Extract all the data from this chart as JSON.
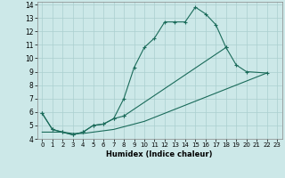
{
  "xlabel": "Humidex (Indice chaleur)",
  "background_color": "#cce8e8",
  "grid_color": "#aacfcf",
  "line_color": "#1a6b5a",
  "xlim": [
    -0.5,
    23.5
  ],
  "ylim": [
    4,
    14.2
  ],
  "xticks": [
    0,
    1,
    2,
    3,
    4,
    5,
    6,
    7,
    8,
    9,
    10,
    11,
    12,
    13,
    14,
    15,
    16,
    17,
    18,
    19,
    20,
    21,
    22,
    23
  ],
  "yticks": [
    4,
    5,
    6,
    7,
    8,
    9,
    10,
    11,
    12,
    13,
    14
  ],
  "series1_x": [
    0,
    1,
    2,
    3,
    4,
    5,
    6,
    7,
    8,
    9,
    10,
    11,
    12,
    13,
    14,
    15,
    16,
    17,
    18
  ],
  "series1_y": [
    5.9,
    4.7,
    4.5,
    4.3,
    4.5,
    5.0,
    5.1,
    5.5,
    7.0,
    9.3,
    10.8,
    11.5,
    12.7,
    12.7,
    12.7,
    13.8,
    13.3,
    12.5,
    10.8
  ],
  "series2a_x": [
    0,
    1,
    2,
    3,
    4,
    5,
    6,
    7,
    8
  ],
  "series2a_y": [
    5.9,
    4.7,
    4.5,
    4.3,
    4.5,
    5.0,
    5.1,
    5.5,
    5.7
  ],
  "series2b_x": [
    8,
    18,
    19,
    20,
    22
  ],
  "series2b_y": [
    5.7,
    10.8,
    9.5,
    9.0,
    8.9
  ],
  "series3_x": [
    0,
    1,
    2,
    3,
    4,
    5,
    6,
    7,
    8,
    9,
    10,
    11,
    12,
    13,
    14,
    15,
    16,
    17,
    18,
    19,
    20,
    21,
    22
  ],
  "series3_y": [
    4.5,
    4.5,
    4.5,
    4.4,
    4.4,
    4.5,
    4.6,
    4.7,
    4.9,
    5.1,
    5.3,
    5.6,
    5.9,
    6.2,
    6.5,
    6.8,
    7.1,
    7.4,
    7.7,
    8.0,
    8.3,
    8.6,
    8.9
  ]
}
